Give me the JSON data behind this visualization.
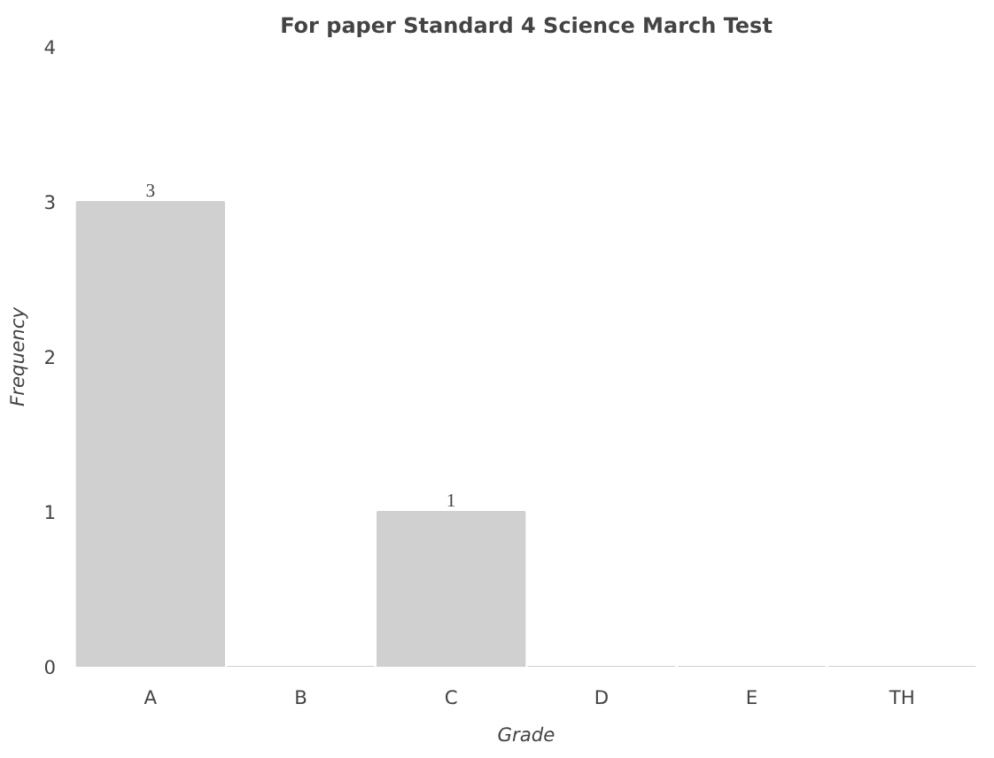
{
  "chart_data": {
    "type": "bar",
    "title": "For paper Standard 4 Science March Test",
    "xlabel": "Grade",
    "ylabel": "Frequency",
    "categories": [
      "A",
      "B",
      "C",
      "D",
      "E",
      "TH"
    ],
    "values": [
      3,
      0,
      1,
      0,
      0,
      0
    ],
    "color": "#d0d0d0",
    "value_labels": [
      "3",
      null,
      "1",
      null,
      null,
      null
    ],
    "ylim": [
      0,
      4
    ],
    "yticks": [
      0,
      1,
      2,
      3,
      4
    ],
    "grid": false
  }
}
